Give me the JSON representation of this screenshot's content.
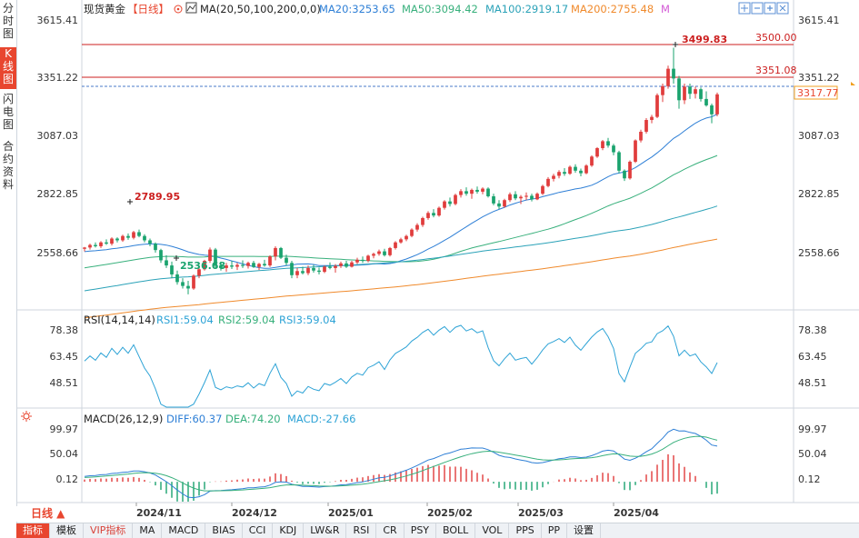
{
  "left_tabs": [
    {
      "label": "分时图",
      "active": false
    },
    {
      "label": "K线图",
      "active": true
    },
    {
      "label": "闪电图",
      "active": false
    },
    {
      "label": "合约资料",
      "active": false
    }
  ],
  "main_header": {
    "instrument": "现货黄金",
    "period": "【日线】",
    "ma_label": "MA(20,50,100,200,0,0)",
    "ma20": "MA20:3253.65",
    "ma50": "MA50:3094.42",
    "ma100": "MA100:2919.17",
    "ma200": "MA200:2755.48",
    "m_tag": "M"
  },
  "rsi_header": {
    "label": "RSI(14,14,14)",
    "rsi1": "RSI1:59.04",
    "rsi2": "RSI2:59.04",
    "rsi3": "RSI3:59.04"
  },
  "macd_header": {
    "label": "MACD(26,12,9)",
    "diff": "DIFF:60.37",
    "dea": "DEA:74.20",
    "macd": "MACD:-27.66"
  },
  "price_axis": [
    "3615.41",
    "3351.22",
    "3087.03",
    "2822.85",
    "2558.66"
  ],
  "rsi_axis": [
    "78.38",
    "63.45",
    "48.51"
  ],
  "macd_axis": [
    "99.97",
    "50.04",
    "0.12"
  ],
  "annotations": {
    "high": "3499.83",
    "early_high": "2789.95",
    "low": "2536.68",
    "level_upper": "3500.00",
    "level_lower": "3351.08",
    "current": "3317.77"
  },
  "time_axis": [
    "2024/11",
    "2024/12",
    "2025/01",
    "2025/02",
    "2025/03",
    "2025/04"
  ],
  "period_button": "日线 ▲",
  "bottom_tabs": [
    {
      "label": "指标",
      "active": true
    },
    {
      "label": "模板"
    },
    {
      "label": "VIP指标",
      "vip": true
    },
    {
      "label": "MA"
    },
    {
      "label": "MACD"
    },
    {
      "label": "BIAS"
    },
    {
      "label": "CCI"
    },
    {
      "label": "KDJ"
    },
    {
      "label": "LW&R"
    },
    {
      "label": "RSI"
    },
    {
      "label": "CR"
    },
    {
      "label": "PSY"
    },
    {
      "label": "BOLL"
    },
    {
      "label": "VOL"
    },
    {
      "label": "PPS"
    },
    {
      "label": "PP"
    },
    {
      "label": "设置"
    }
  ],
  "colors": {
    "up": "#e03c3c",
    "down": "#1aa36e",
    "ma20": "#2e7fd6",
    "ma50": "#38b07c",
    "ma100": "#2ba2b8",
    "ma200": "#f08a2c",
    "rsi": "#2ea3d6",
    "diff": "#2e7fd6",
    "dea": "#38b07c",
    "accent": "#e8462f",
    "hline": "#cc1f1f"
  },
  "chart_data": {
    "type": "candlestick",
    "price_range": [
      2480,
      3615.41
    ],
    "rsi_range": [
      35,
      85
    ],
    "macd_range": [
      -40,
      110
    ],
    "candles_ohlc": [
      [
        2715,
        2722,
        2705,
        2720
      ],
      [
        2720,
        2735,
        2712,
        2730
      ],
      [
        2730,
        2740,
        2720,
        2725
      ],
      [
        2725,
        2745,
        2718,
        2740
      ],
      [
        2740,
        2752,
        2730,
        2735
      ],
      [
        2735,
        2760,
        2728,
        2755
      ],
      [
        2755,
        2760,
        2740,
        2748
      ],
      [
        2748,
        2770,
        2742,
        2765
      ],
      [
        2765,
        2775,
        2750,
        2758
      ],
      [
        2758,
        2785,
        2752,
        2780
      ],
      [
        2780,
        2790,
        2760,
        2765
      ],
      [
        2765,
        2772,
        2740,
        2748
      ],
      [
        2748,
        2755,
        2725,
        2735
      ],
      [
        2735,
        2740,
        2700,
        2710
      ],
      [
        2710,
        2715,
        2660,
        2670
      ],
      [
        2670,
        2690,
        2640,
        2650
      ],
      [
        2650,
        2665,
        2600,
        2615
      ],
      [
        2615,
        2630,
        2575,
        2585
      ],
      [
        2585,
        2600,
        2560,
        2570
      ],
      [
        2570,
        2590,
        2537,
        2560
      ],
      [
        2560,
        2615,
        2555,
        2610
      ],
      [
        2610,
        2640,
        2600,
        2635
      ],
      [
        2635,
        2672,
        2630,
        2668
      ],
      [
        2668,
        2720,
        2660,
        2712
      ],
      [
        2712,
        2718,
        2640,
        2650
      ],
      [
        2650,
        2665,
        2630,
        2640
      ],
      [
        2640,
        2660,
        2625,
        2650
      ],
      [
        2650,
        2668,
        2636,
        2645
      ],
      [
        2645,
        2660,
        2632,
        2652
      ],
      [
        2652,
        2670,
        2640,
        2648
      ],
      [
        2648,
        2665,
        2638,
        2660
      ],
      [
        2660,
        2668,
        2640,
        2644
      ],
      [
        2644,
        2660,
        2632,
        2656
      ],
      [
        2656,
        2672,
        2645,
        2650
      ],
      [
        2650,
        2690,
        2644,
        2685
      ],
      [
        2685,
        2725,
        2670,
        2718
      ],
      [
        2718,
        2722,
        2675,
        2680
      ],
      [
        2680,
        2692,
        2650,
        2660
      ],
      [
        2660,
        2668,
        2600,
        2612
      ],
      [
        2612,
        2640,
        2600,
        2628
      ],
      [
        2628,
        2645,
        2615,
        2620
      ],
      [
        2620,
        2650,
        2612,
        2640
      ],
      [
        2640,
        2652,
        2622,
        2630
      ],
      [
        2630,
        2642,
        2615,
        2625
      ],
      [
        2625,
        2650,
        2620,
        2645
      ],
      [
        2645,
        2662,
        2635,
        2640
      ],
      [
        2640,
        2655,
        2622,
        2648
      ],
      [
        2648,
        2665,
        2640,
        2658
      ],
      [
        2658,
        2668,
        2640,
        2645
      ],
      [
        2645,
        2668,
        2642,
        2662
      ],
      [
        2662,
        2680,
        2655,
        2672
      ],
      [
        2672,
        2685,
        2660,
        2668
      ],
      [
        2668,
        2692,
        2662,
        2688
      ],
      [
        2688,
        2700,
        2678,
        2695
      ],
      [
        2695,
        2712,
        2688,
        2705
      ],
      [
        2705,
        2715,
        2685,
        2690
      ],
      [
        2690,
        2722,
        2685,
        2718
      ],
      [
        2718,
        2745,
        2712,
        2740
      ],
      [
        2740,
        2758,
        2735,
        2752
      ],
      [
        2752,
        2770,
        2745,
        2765
      ],
      [
        2765,
        2795,
        2760,
        2790
      ],
      [
        2790,
        2815,
        2782,
        2808
      ],
      [
        2808,
        2840,
        2800,
        2835
      ],
      [
        2835,
        2862,
        2828,
        2855
      ],
      [
        2855,
        2870,
        2838,
        2845
      ],
      [
        2845,
        2880,
        2840,
        2875
      ],
      [
        2875,
        2905,
        2868,
        2900
      ],
      [
        2900,
        2915,
        2880,
        2890
      ],
      [
        2890,
        2930,
        2885,
        2925
      ],
      [
        2925,
        2948,
        2915,
        2940
      ],
      [
        2940,
        2955,
        2922,
        2930
      ],
      [
        2930,
        2950,
        2910,
        2945
      ],
      [
        2945,
        2958,
        2930,
        2938
      ],
      [
        2938,
        2955,
        2928,
        2950
      ],
      [
        2950,
        2955,
        2915,
        2920
      ],
      [
        2920,
        2930,
        2885,
        2892
      ],
      [
        2892,
        2905,
        2870,
        2880
      ],
      [
        2880,
        2910,
        2875,
        2905
      ],
      [
        2905,
        2935,
        2898,
        2928
      ],
      [
        2928,
        2940,
        2905,
        2912
      ],
      [
        2912,
        2925,
        2890,
        2918
      ],
      [
        2918,
        2935,
        2905,
        2922
      ],
      [
        2922,
        2930,
        2900,
        2908
      ],
      [
        2908,
        2935,
        2905,
        2930
      ],
      [
        2930,
        2965,
        2925,
        2960
      ],
      [
        2960,
        2995,
        2955,
        2988
      ],
      [
        2988,
        3008,
        2978,
        3000
      ],
      [
        3000,
        3022,
        2990,
        3015
      ],
      [
        3015,
        3030,
        3000,
        3008
      ],
      [
        3008,
        3040,
        3004,
        3035
      ],
      [
        3035,
        3045,
        3012,
        3020
      ],
      [
        3020,
        3028,
        2998,
        3010
      ],
      [
        3010,
        3045,
        3006,
        3040
      ],
      [
        3040,
        3080,
        3035,
        3075
      ],
      [
        3075,
        3112,
        3070,
        3108
      ],
      [
        3108,
        3140,
        3100,
        3135
      ],
      [
        3135,
        3148,
        3110,
        3118
      ],
      [
        3118,
        3125,
        3080,
        3092
      ],
      [
        3092,
        3098,
        3010,
        3020
      ],
      [
        3020,
        3025,
        2980,
        2990
      ],
      [
        2990,
        3060,
        2985,
        3055
      ],
      [
        3055,
        3142,
        3050,
        3138
      ],
      [
        3138,
        3180,
        3130,
        3172
      ],
      [
        3172,
        3225,
        3165,
        3218
      ],
      [
        3218,
        3238,
        3205,
        3230
      ],
      [
        3230,
        3322,
        3225,
        3315
      ],
      [
        3315,
        3360,
        3288,
        3350
      ],
      [
        3350,
        3430,
        3340,
        3418
      ],
      [
        3418,
        3500,
        3360,
        3380
      ],
      [
        3380,
        3390,
        3262,
        3295
      ],
      [
        3295,
        3360,
        3280,
        3348
      ],
      [
        3348,
        3360,
        3300,
        3320
      ],
      [
        3320,
        3348,
        3302,
        3338
      ],
      [
        3338,
        3345,
        3290,
        3300
      ],
      [
        3300,
        3330,
        3270,
        3275
      ],
      [
        3275,
        3282,
        3205,
        3240
      ],
      [
        3240,
        3325,
        3232,
        3318
      ]
    ]
  }
}
